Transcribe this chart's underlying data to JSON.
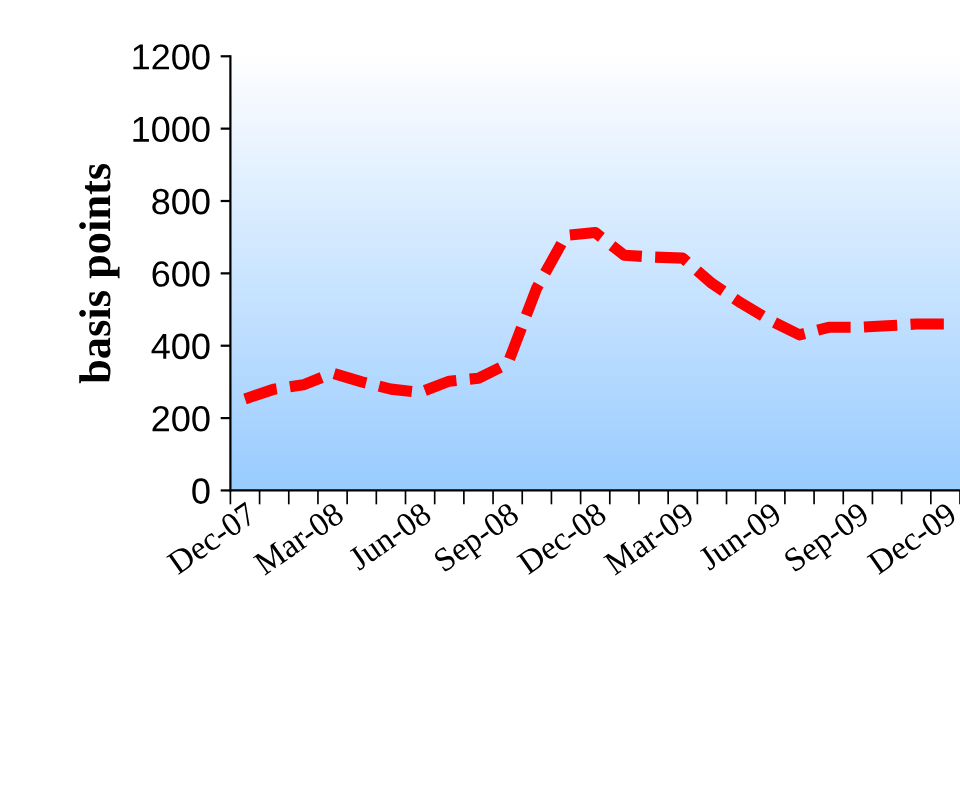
{
  "chart_data": {
    "type": "line",
    "ylabel": "basis points",
    "categories": [
      "Dec-07",
      null,
      null,
      "Mar-08",
      null,
      null,
      "Jun-08",
      null,
      null,
      "Sep-08",
      null,
      null,
      "Dec-08",
      null,
      null,
      "Mar-09",
      null,
      null,
      "Jun-09",
      null,
      null,
      "Sep-09",
      null,
      null,
      "Dec-09"
    ],
    "series": [
      {
        "color": "#ff0000",
        "values": [
          253,
          280,
          292,
          324,
          300,
          280,
          271,
          302,
          310,
          350,
          560,
          705,
          713,
          650,
          645,
          642,
          572,
          518,
          470,
          430,
          451,
          451,
          455,
          460,
          460
        ]
      }
    ],
    "ylim": [
      0,
      1200
    ],
    "yticks": [
      0,
      200,
      400,
      600,
      800,
      1000,
      1200
    ],
    "grid": false,
    "line_style": "dashed",
    "marker": "none"
  }
}
